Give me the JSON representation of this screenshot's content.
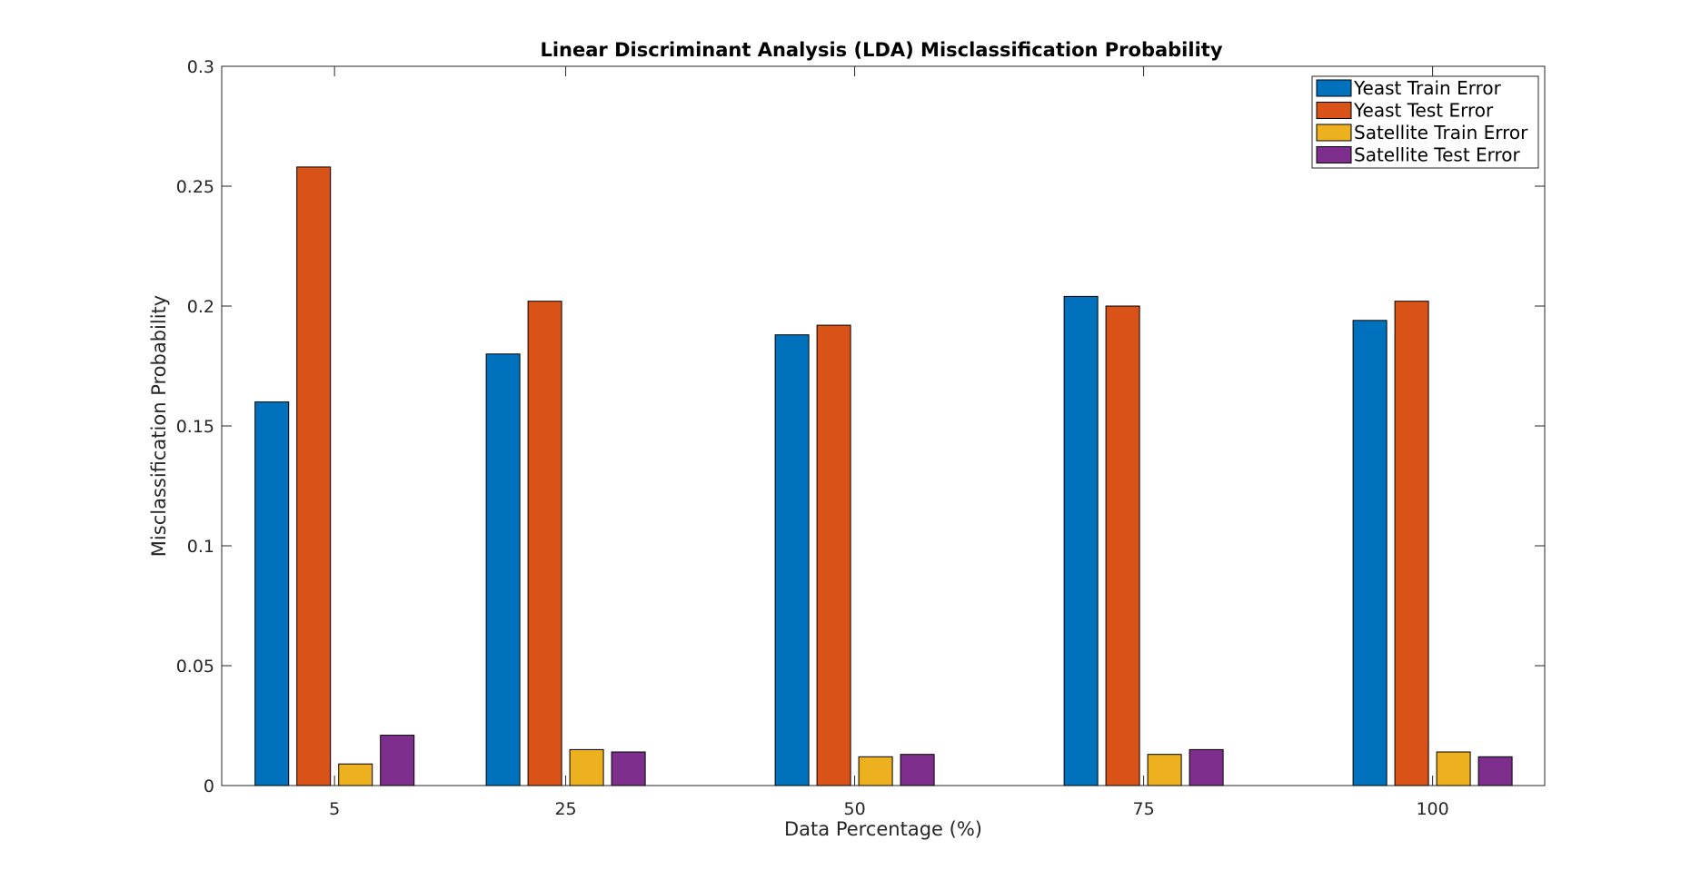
{
  "chart_data": {
    "type": "bar",
    "title": "Linear Discriminant Analysis (LDA) Misclassification Probability",
    "xlabel": "Data Percentage (%)",
    "ylabel": "Misclassification Probability",
    "categories": [
      "5",
      "25",
      "50",
      "75",
      "100"
    ],
    "x": [
      5,
      25,
      50,
      75,
      100
    ],
    "xlim": [
      -4.76,
      109.7
    ],
    "ylim": [
      0,
      0.3
    ],
    "yticks": [
      0,
      0.05,
      0.1,
      0.15,
      0.2,
      0.25,
      0.3
    ],
    "ytick_labels": [
      "0",
      "0.05",
      "0.1",
      "0.15",
      "0.2",
      "0.25",
      "0.3"
    ],
    "grid": false,
    "legend_position": "top-right",
    "series": [
      {
        "name": "Yeast Train Error",
        "color": "#0072BD",
        "values": [
          0.16,
          0.18,
          0.188,
          0.204,
          0.194
        ]
      },
      {
        "name": "Yeast Test Error",
        "color": "#D95319",
        "values": [
          0.258,
          0.202,
          0.192,
          0.2,
          0.202
        ]
      },
      {
        "name": "Satellite Train Error",
        "color": "#EDB120",
        "values": [
          0.009,
          0.015,
          0.012,
          0.013,
          0.014
        ]
      },
      {
        "name": "Satellite Test Error",
        "color": "#7E2F8E",
        "values": [
          0.021,
          0.014,
          0.013,
          0.015,
          0.012
        ]
      }
    ]
  }
}
